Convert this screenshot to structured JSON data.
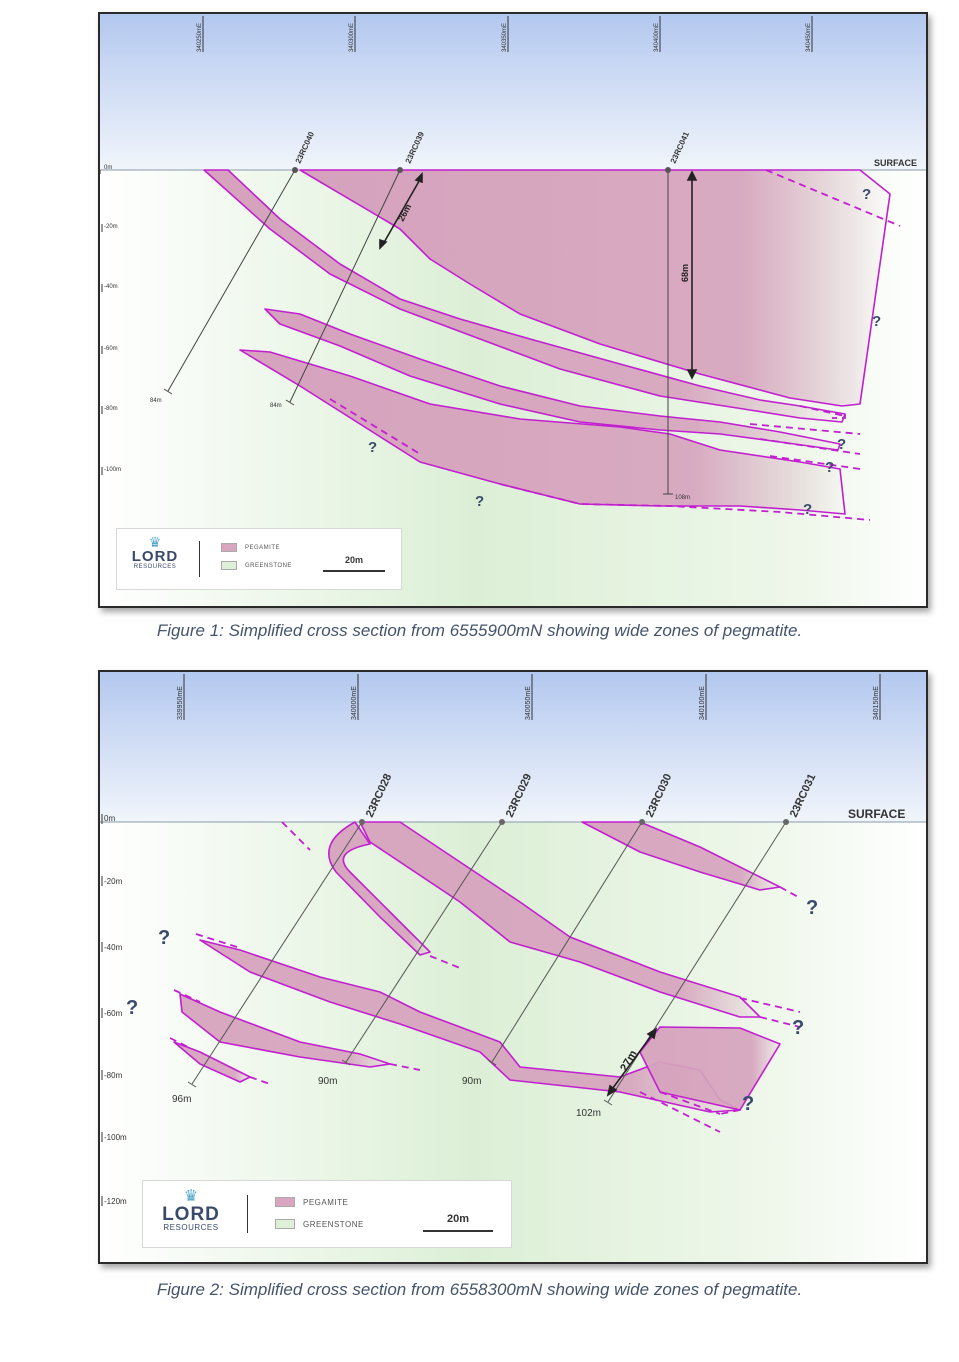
{
  "colors": {
    "sky_top": "#b6caee",
    "sky_bottom": "#eef3fb",
    "ground": "#dff0d8",
    "pegmatite": "#d9a6bf",
    "outline": "#c020d0",
    "hole": "#444444"
  },
  "figure1": {
    "eastings": [
      "340250mE",
      "340300mE",
      "340350mE",
      "340400mE",
      "340450mE"
    ],
    "depths": [
      "0m",
      "-20m",
      "-40m",
      "-60m",
      "-80m",
      "-100m"
    ],
    "holes": [
      {
        "name": "23RC040",
        "end_depth": "84m"
      },
      {
        "name": "23RC039",
        "end_depth": "84m"
      },
      {
        "name": "23RC041",
        "end_depth": "108m"
      }
    ],
    "surface_label": "SURFACE",
    "width_labels": [
      "26m",
      "68m"
    ],
    "question": "?",
    "legend": {
      "brand": "LORD",
      "brand_sub": "RESOURCES",
      "pegmatite": "PEGAMITE",
      "greenstone": "GREENSTONE",
      "scale": "20m"
    },
    "caption": "Figure 1: Simplified cross section from 6555900mN showing wide zones of pegmatite."
  },
  "figure2": {
    "eastings": [
      "339950mE",
      "340000mE",
      "340050mE",
      "340100mE",
      "340150mE"
    ],
    "depths": [
      "0m",
      "-20m",
      "-40m",
      "-60m",
      "-80m",
      "-100m",
      "-120m"
    ],
    "holes": [
      {
        "name": "23RC028",
        "end_depth": "96m"
      },
      {
        "name": "23RC029",
        "end_depth": "90m"
      },
      {
        "name": "23RC030",
        "end_depth": "90m"
      },
      {
        "name": "23RC031",
        "end_depth": "102m"
      }
    ],
    "surface_label": "SURFACE",
    "width_labels": [
      "27m"
    ],
    "question": "?",
    "legend": {
      "brand": "LORD",
      "brand_sub": "RESOURCES",
      "pegmatite": "PEGAMITE",
      "greenstone": "GREENSTONE",
      "scale": "20m"
    },
    "caption": "Figure 2:  Simplified cross section from 6558300mN showing wide zones of pegmatite."
  }
}
